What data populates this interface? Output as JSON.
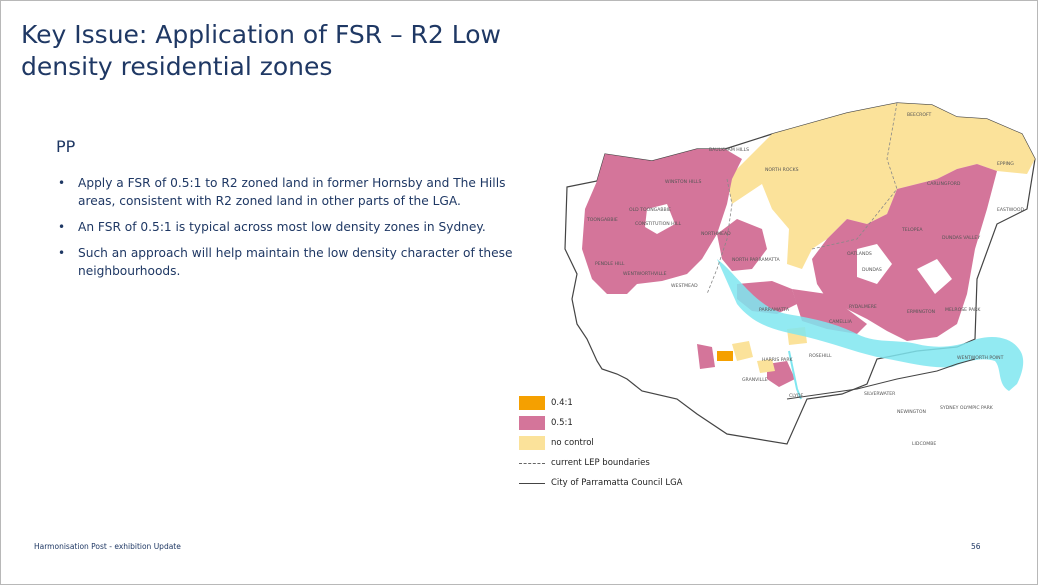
{
  "slide": {
    "title": "Key Issue: Application of FSR – R2 Low density residential zones",
    "subheading": "PP",
    "bullets": [
      "Apply a FSR of 0.5:1 to R2 zoned land in former Hornsby and The Hills areas, consistent with R2 zoned land in other parts of the LGA.",
      "An FSR of 0.5:1 is typical across most low density zones in Sydney.",
      "Such an approach will help maintain the low density character of these neighbourhoods."
    ],
    "footer": "Harmonisation Post - exhibition Update",
    "page_number": "56"
  },
  "map": {
    "colors": {
      "fsr_04": "#f5a000",
      "fsr_05": "#d4759a",
      "no_control": "#fbe29a",
      "water": "#7fe6f0",
      "boundary": "#444444"
    },
    "legend": [
      {
        "label": "0.4:1",
        "kind": "swatch",
        "color": "#f5a000"
      },
      {
        "label": "0.5:1",
        "kind": "swatch",
        "color": "#d4759a"
      },
      {
        "label": "no control",
        "kind": "swatch",
        "color": "#fbe29a"
      },
      {
        "label": "current LEP boundaries",
        "kind": "dashed"
      },
      {
        "label": "City of Parramatta Council LGA",
        "kind": "solid"
      }
    ],
    "suburbs": [
      "BEECROFT",
      "EPPING",
      "CARLINGFORD",
      "EASTWOOD",
      "TELOPEA",
      "DUNDAS VALLEY",
      "OATLANDS",
      "DUNDAS",
      "ERMINGTON",
      "MELROSE PARK",
      "RYDALMERE",
      "CAMELLIA",
      "ROSEHILL",
      "HARRIS PARK",
      "GRANVILLE",
      "CLYDE",
      "SILVERWATER",
      "NEWINGTON",
      "SYDNEY OLYMPIC PARK",
      "LIDCOMBE",
      "WENTWORTH POINT",
      "NORTH ROCKS",
      "NORTH PARRAMATTA",
      "PARRAMATTA",
      "NORTHMEAD",
      "WESTMEAD",
      "WENTWORTHVILLE",
      "PENDLE HILL",
      "TOONGABBIE",
      "CONSTITUTION HILL",
      "OLD TOONGABBIE",
      "WINSTON HILLS",
      "BAULKHAM HILLS"
    ]
  }
}
